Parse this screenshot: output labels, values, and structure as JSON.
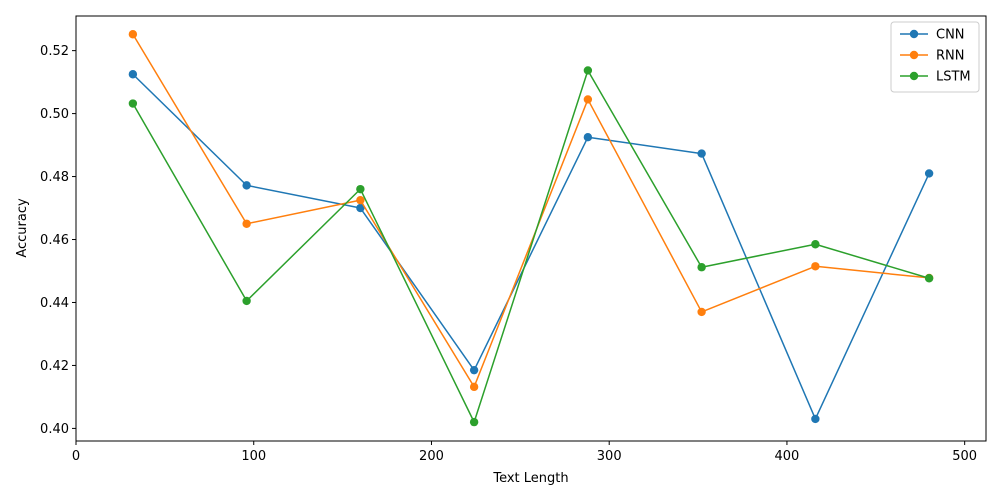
{
  "chart_data": {
    "type": "line",
    "title": "",
    "xlabel": "Text Length",
    "ylabel": "Accuracy",
    "xlim": [
      0,
      512
    ],
    "ylim": [
      0.396,
      0.531
    ],
    "xticks": [
      0,
      100,
      200,
      300,
      400,
      500
    ],
    "xtick_labels": [
      "0",
      "100",
      "200",
      "300",
      "400",
      "500"
    ],
    "yticks": [
      0.4,
      0.42,
      0.44,
      0.46,
      0.48,
      0.5,
      0.52
    ],
    "ytick_labels": [
      "0.40",
      "0.42",
      "0.44",
      "0.46",
      "0.48",
      "0.50",
      "0.52"
    ],
    "grid": false,
    "legend_position": "top-right",
    "x": [
      32,
      96,
      160,
      224,
      288,
      352,
      416,
      480
    ],
    "series": [
      {
        "name": "CNN",
        "color": "#1f77b4",
        "values": [
          0.5125,
          0.4772,
          0.47,
          0.4185,
          0.4925,
          0.4873,
          0.403,
          0.481
        ]
      },
      {
        "name": "RNN",
        "color": "#ff7f0e",
        "values": [
          0.5252,
          0.465,
          0.4725,
          0.4132,
          0.5045,
          0.437,
          0.4515,
          0.4478
        ]
      },
      {
        "name": "LSTM",
        "color": "#2ca02c",
        "values": [
          0.5032,
          0.4405,
          0.476,
          0.402,
          0.5137,
          0.4512,
          0.4585,
          0.4477
        ]
      }
    ]
  }
}
